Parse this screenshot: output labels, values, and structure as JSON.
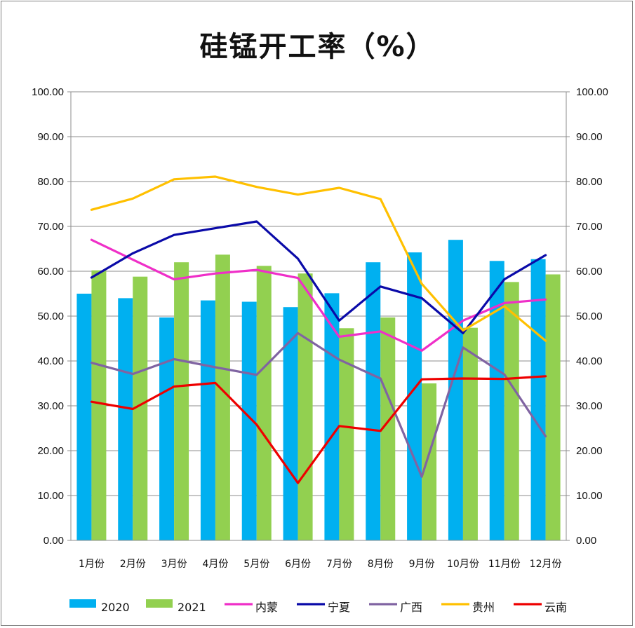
{
  "chart_data": {
    "type": "bar",
    "title": "硅锰开工率（%）",
    "categories": [
      "1月份",
      "2月份",
      "3月份",
      "4月份",
      "5月份",
      "6月份",
      "7月份",
      "8月份",
      "9月份",
      "10月份",
      "11月份",
      "12月份"
    ],
    "ylim": [
      0,
      100
    ],
    "yticks": [
      "0.00",
      "10.00",
      "20.00",
      "30.00",
      "40.00",
      "50.00",
      "60.00",
      "70.00",
      "80.00",
      "90.00",
      "100.00"
    ],
    "grid": true,
    "legend_position": "bottom",
    "bar_series": [
      {
        "name": "2020",
        "color": "#00b0f0",
        "values": [
          55.0,
          54.0,
          49.7,
          53.5,
          53.2,
          52.0,
          55.1,
          62.0,
          64.2,
          67.0,
          62.3,
          62.7
        ]
      },
      {
        "name": "2021",
        "color": "#92d050",
        "values": [
          60.2,
          58.8,
          62.0,
          63.7,
          61.2,
          59.5,
          47.3,
          49.7,
          35.0,
          47.4,
          57.6,
          59.3
        ]
      }
    ],
    "line_series": [
      {
        "name": "内蒙",
        "color": "#ef2fc8",
        "values": [
          67.0,
          62.6,
          58.2,
          59.5,
          60.3,
          58.5,
          45.4,
          46.6,
          42.3,
          49.0,
          52.9,
          53.7
        ]
      },
      {
        "name": "宁夏",
        "color": "#0a0aa8",
        "values": [
          58.6,
          64.0,
          68.1,
          69.6,
          71.1,
          62.8,
          49.0,
          56.6,
          54.0,
          46.2,
          58.2,
          63.6
        ]
      },
      {
        "name": "广西",
        "color": "#8064a2",
        "values": [
          39.6,
          37.1,
          40.4,
          38.6,
          36.9,
          46.2,
          40.3,
          36.1,
          14.2,
          43.0,
          37.0,
          23.2
        ]
      },
      {
        "name": "贵州",
        "color": "#ffc000",
        "values": [
          73.7,
          76.2,
          80.5,
          81.1,
          78.8,
          77.1,
          78.6,
          76.1,
          57.2,
          46.8,
          52.2,
          44.5
        ]
      },
      {
        "name": "云南",
        "color": "#ee0000",
        "values": [
          30.9,
          29.3,
          34.3,
          35.1,
          25.8,
          12.8,
          25.5,
          24.4,
          35.9,
          36.1,
          36.0,
          36.6
        ]
      }
    ]
  }
}
